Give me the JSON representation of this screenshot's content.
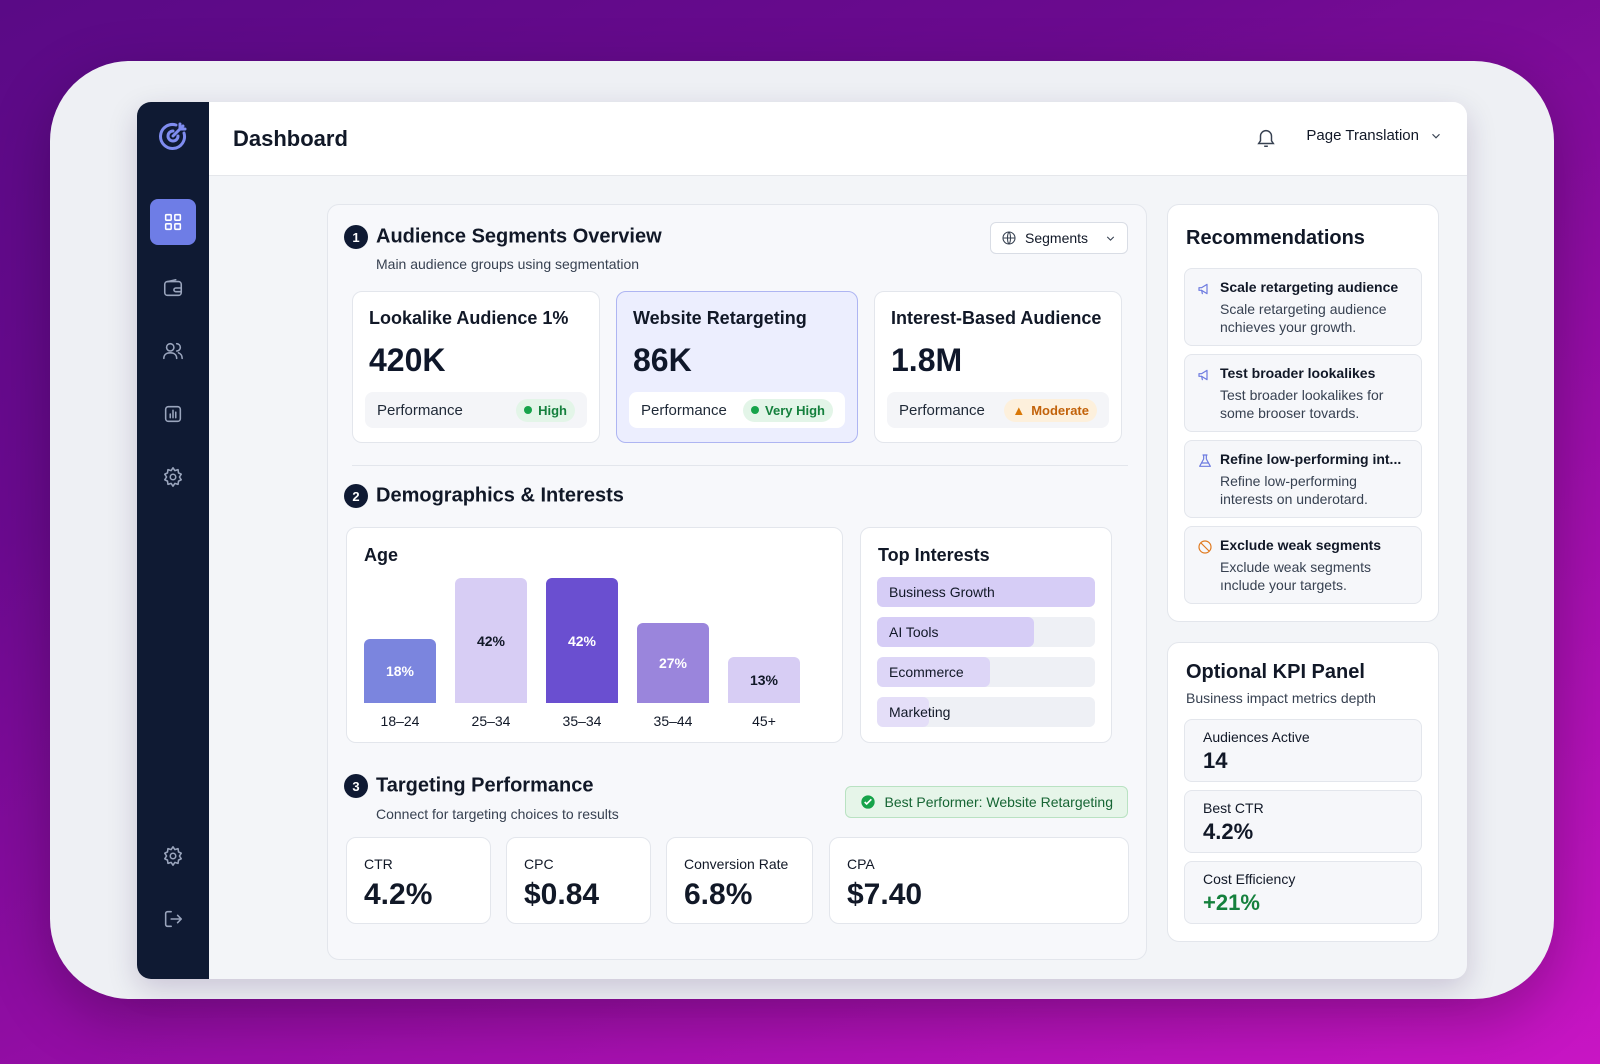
{
  "header": {
    "title": "Dashboard",
    "language_label": "Page Translation"
  },
  "sidebar": {
    "items": [
      {
        "icon": "grid-icon",
        "active": true
      },
      {
        "icon": "wallet-icon"
      },
      {
        "icon": "users-icon"
      },
      {
        "icon": "chart-icon"
      },
      {
        "icon": "gear-icon"
      },
      {
        "icon": "settings-icon"
      },
      {
        "icon": "logout-icon"
      }
    ]
  },
  "segments": {
    "number": "1",
    "title": "Audience Segments Overview",
    "subtitle": "Main audience groups using segmentation",
    "button_label": "Segments",
    "cards": [
      {
        "title": "Lookalike Audience 1%",
        "value": "420K",
        "perf_label": "Performance",
        "badge": "High"
      },
      {
        "title": "Website Retargeting",
        "value": "86K",
        "perf_label": "Performance",
        "badge": "Very High"
      },
      {
        "title": "Interest-Based Audience",
        "value": "1.8M",
        "perf_label": "Performance",
        "badge": "Moderate"
      }
    ]
  },
  "demographics": {
    "number": "2",
    "title": "Demographics & Interests",
    "age_title": "Age",
    "interests_title": "Top Interests",
    "interests": [
      {
        "label": "Business Growth",
        "level": 1.0,
        "color": "#d6cdf6"
      },
      {
        "label": "AI Tools",
        "level": 0.72,
        "color": "#d6cdf6"
      },
      {
        "label": "Ecommerce",
        "level": 0.52,
        "color": "#ddd6f7"
      },
      {
        "label": "Marketing",
        "level": 0.24,
        "color": "#e4def8"
      }
    ]
  },
  "chart_data": {
    "type": "bar",
    "title": "Age",
    "categories": [
      "18–24",
      "25–34",
      "35–34",
      "35–44",
      "45+"
    ],
    "values": [
      18,
      42,
      42,
      27,
      13
    ],
    "data_labels": [
      "18%",
      "42%",
      "42%",
      "27%",
      "13%"
    ],
    "colors": [
      "#7b85de",
      "#d7cdf4",
      "#6a4fd0",
      "#9a85dc",
      "#d7cdf4"
    ],
    "label_colors": [
      "#ffffff",
      "#111827",
      "#ffffff",
      "#ffffff",
      "#111827"
    ]
  },
  "targeting": {
    "number": "3",
    "title": "Targeting Performance",
    "subtitle": "Connect for targeting choices to results",
    "best_performer": "Best Performer: Website Retargeting",
    "metrics": [
      {
        "label": "CTR",
        "value": "4.2%"
      },
      {
        "label": "CPC",
        "value": "$0.84"
      },
      {
        "label": "Conversion Rate",
        "value": "6.8%"
      },
      {
        "label": "CPA",
        "value": "$7.40"
      }
    ]
  },
  "recommendations": {
    "title": "Recommendations",
    "items": [
      {
        "icon": "megaphone-icon",
        "title": "Scale retargeting audience",
        "description": "Scale retargeting audience nchieves your growth."
      },
      {
        "icon": "megaphone-icon",
        "title": "Test broader lookalikes",
        "description": "Test broader lookalikes for some brooser tovards."
      },
      {
        "icon": "flask-icon",
        "title": "Refine low-performing int...",
        "description": "Refine low-performing interests on underotard."
      },
      {
        "icon": "ban-icon",
        "title": "Exclude weak segments",
        "description": "Exclude weak segments ınclude your targets."
      }
    ]
  },
  "kpi": {
    "title": "Optional KPI Panel",
    "subtitle": "Business impact metrics depth",
    "items": [
      {
        "label": "Audiences Active",
        "value": "14"
      },
      {
        "label": "Best CTR",
        "value": "4.2%"
      },
      {
        "label": "Cost Efficiency",
        "value": "+21%",
        "color": "#15803d"
      }
    ]
  }
}
